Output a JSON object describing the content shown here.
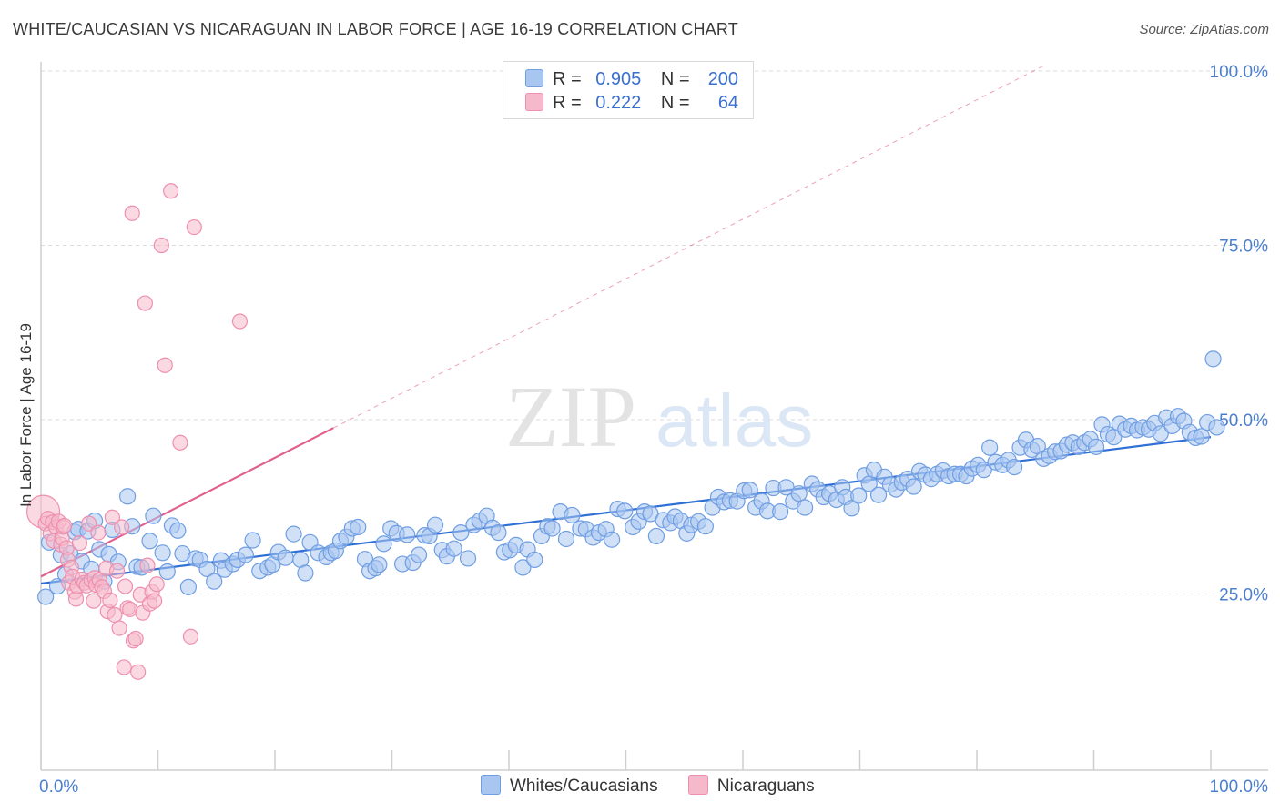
{
  "header": {
    "title": "WHITE/CAUCASIAN VS NICARAGUAN IN LABOR FORCE | AGE 16-19 CORRELATION CHART",
    "source": "Source: ZipAtlas.com"
  },
  "watermark": {
    "zip": "ZIP",
    "atlas": "atlas"
  },
  "colors": {
    "white_fill": "#a9c6f0",
    "white_stroke": "#6f9ee3",
    "white_line": "#2f6fd6",
    "nic_fill": "#f6b9cb",
    "nic_stroke": "#ee8fb0",
    "nic_line": "#e0608e",
    "grid": "#d9d9d9",
    "tick_text": "#4a7fd0"
  },
  "legend_top": {
    "rows": [
      {
        "r_label": "R =",
        "r_value": "0.905",
        "n_label": "N =",
        "n_value": "200"
      },
      {
        "r_label": "R =",
        "r_value": "0.222",
        "n_label": "N =",
        "n_value": "64"
      }
    ]
  },
  "legend_bottom": {
    "items": [
      {
        "label": "Whites/Caucasians"
      },
      {
        "label": "Nicaraguans"
      }
    ]
  },
  "chart_data": {
    "type": "scatter",
    "title": "WHITE/CAUCASIAN VS NICARAGUAN IN LABOR FORCE | AGE 16-19 CORRELATION CHART",
    "xlabel": "",
    "ylabel": "In Labor Force | Age 16-19",
    "xlim": [
      0,
      100
    ],
    "ylim": [
      0,
      100
    ],
    "x_ticks": [
      {
        "value": 0,
        "label": "0.0%"
      },
      {
        "value": 100,
        "label": "100.0%"
      }
    ],
    "y_ticks": [
      {
        "value": 25,
        "label": "25.0%"
      },
      {
        "value": 50,
        "label": "50.0%"
      },
      {
        "value": 75,
        "label": "75.0%"
      },
      {
        "value": 100,
        "label": "100.0%"
      }
    ],
    "grid": true,
    "legend_placement": "bottom-center",
    "series": [
      {
        "name": "Whites/Caucasians",
        "r": 0.905,
        "n": 200,
        "trend": {
          "x": [
            0,
            100
          ],
          "y": [
            26.5,
            47.5
          ]
        },
        "points": [
          [
            0.4,
            24.6
          ],
          [
            0.7,
            32.4
          ],
          [
            1.4,
            26.1
          ],
          [
            1.7,
            30.6
          ],
          [
            2.1,
            27.8
          ],
          [
            2.5,
            30.8
          ],
          [
            2.9,
            33.9
          ],
          [
            3.2,
            34.3
          ],
          [
            3.5,
            29.7
          ],
          [
            4.0,
            34.0
          ],
          [
            4.3,
            28.6
          ],
          [
            4.6,
            35.5
          ],
          [
            5.0,
            31.4
          ],
          [
            5.4,
            26.8
          ],
          [
            5.8,
            30.7
          ],
          [
            6.1,
            34.2
          ],
          [
            6.6,
            29.6
          ],
          [
            7.4,
            39.0
          ],
          [
            7.8,
            34.7
          ],
          [
            8.2,
            28.9
          ],
          [
            8.6,
            28.8
          ],
          [
            9.3,
            32.6
          ],
          [
            9.6,
            36.2
          ],
          [
            10.4,
            30.9
          ],
          [
            10.8,
            28.2
          ],
          [
            11.2,
            34.8
          ],
          [
            11.7,
            34.1
          ],
          [
            12.1,
            30.8
          ],
          [
            12.6,
            26.0
          ],
          [
            13.2,
            30.1
          ],
          [
            13.6,
            29.9
          ],
          [
            14.2,
            28.6
          ],
          [
            14.8,
            26.8
          ],
          [
            15.4,
            29.8
          ],
          [
            15.7,
            28.5
          ],
          [
            16.4,
            29.3
          ],
          [
            16.8,
            29.9
          ],
          [
            17.5,
            30.6
          ],
          [
            18.1,
            32.7
          ],
          [
            18.7,
            28.3
          ],
          [
            19.4,
            28.8
          ],
          [
            19.8,
            29.2
          ],
          [
            20.3,
            31.0
          ],
          [
            20.9,
            30.2
          ],
          [
            21.6,
            33.6
          ],
          [
            22.2,
            29.9
          ],
          [
            22.6,
            28.0
          ],
          [
            23.0,
            32.4
          ],
          [
            23.7,
            30.9
          ],
          [
            24.4,
            30.3
          ],
          [
            24.8,
            30.9
          ],
          [
            25.2,
            31.2
          ],
          [
            25.6,
            32.6
          ],
          [
            26.1,
            33.2
          ],
          [
            26.6,
            34.4
          ],
          [
            27.1,
            34.6
          ],
          [
            27.7,
            30.0
          ],
          [
            28.1,
            28.3
          ],
          [
            28.6,
            28.7
          ],
          [
            28.9,
            29.2
          ],
          [
            29.3,
            32.2
          ],
          [
            29.9,
            34.4
          ],
          [
            30.4,
            33.7
          ],
          [
            30.9,
            29.3
          ],
          [
            31.3,
            33.5
          ],
          [
            31.8,
            29.5
          ],
          [
            32.3,
            30.6
          ],
          [
            32.8,
            33.4
          ],
          [
            33.2,
            33.3
          ],
          [
            33.7,
            34.9
          ],
          [
            34.3,
            31.3
          ],
          [
            34.7,
            30.4
          ],
          [
            35.3,
            31.5
          ],
          [
            35.9,
            33.8
          ],
          [
            36.5,
            30.1
          ],
          [
            37.0,
            34.9
          ],
          [
            37.5,
            35.5
          ],
          [
            38.1,
            36.2
          ],
          [
            38.6,
            34.5
          ],
          [
            39.1,
            33.8
          ],
          [
            39.6,
            31.0
          ],
          [
            40.1,
            31.3
          ],
          [
            40.6,
            32.0
          ],
          [
            41.2,
            28.8
          ],
          [
            41.6,
            31.4
          ],
          [
            42.2,
            29.9
          ],
          [
            42.8,
            33.3
          ],
          [
            43.3,
            34.7
          ],
          [
            43.7,
            34.4
          ],
          [
            44.4,
            36.8
          ],
          [
            44.9,
            32.9
          ],
          [
            45.4,
            36.3
          ],
          [
            46.1,
            34.4
          ],
          [
            46.6,
            34.3
          ],
          [
            47.2,
            33.1
          ],
          [
            47.7,
            33.8
          ],
          [
            48.3,
            34.3
          ],
          [
            48.8,
            32.8
          ],
          [
            49.3,
            37.2
          ],
          [
            49.9,
            36.9
          ],
          [
            50.6,
            34.6
          ],
          [
            51.1,
            35.4
          ],
          [
            51.6,
            36.8
          ],
          [
            52.1,
            36.5
          ],
          [
            52.6,
            33.3
          ],
          [
            53.2,
            35.6
          ],
          [
            53.8,
            35.2
          ],
          [
            54.2,
            36.1
          ],
          [
            54.7,
            35.5
          ],
          [
            55.2,
            33.7
          ],
          [
            55.6,
            34.9
          ],
          [
            56.2,
            35.4
          ],
          [
            56.8,
            34.7
          ],
          [
            57.4,
            37.4
          ],
          [
            57.9,
            38.9
          ],
          [
            58.4,
            38.2
          ],
          [
            58.9,
            38.4
          ],
          [
            59.5,
            38.3
          ],
          [
            60.1,
            39.8
          ],
          [
            60.6,
            39.9
          ],
          [
            61.1,
            37.4
          ],
          [
            61.6,
            38.3
          ],
          [
            62.1,
            36.9
          ],
          [
            62.6,
            40.2
          ],
          [
            63.2,
            36.8
          ],
          [
            63.7,
            40.3
          ],
          [
            64.3,
            38.3
          ],
          [
            64.8,
            39.4
          ],
          [
            65.3,
            37.4
          ],
          [
            65.9,
            40.8
          ],
          [
            66.4,
            40.0
          ],
          [
            66.9,
            38.9
          ],
          [
            67.4,
            39.4
          ],
          [
            68.0,
            38.5
          ],
          [
            68.5,
            40.3
          ],
          [
            68.8,
            38.9
          ],
          [
            69.3,
            37.3
          ],
          [
            69.9,
            39.1
          ],
          [
            70.4,
            42.0
          ],
          [
            70.8,
            40.8
          ],
          [
            71.2,
            42.8
          ],
          [
            71.6,
            39.2
          ],
          [
            72.1,
            41.8
          ],
          [
            72.6,
            40.7
          ],
          [
            73.1,
            40.0
          ],
          [
            73.6,
            41.0
          ],
          [
            74.1,
            41.5
          ],
          [
            74.6,
            40.4
          ],
          [
            75.1,
            42.6
          ],
          [
            75.6,
            42.1
          ],
          [
            76.1,
            41.5
          ],
          [
            76.6,
            42.2
          ],
          [
            77.1,
            42.7
          ],
          [
            77.6,
            41.9
          ],
          [
            78.1,
            42.2
          ],
          [
            78.6,
            42.2
          ],
          [
            79.1,
            41.9
          ],
          [
            79.6,
            43.0
          ],
          [
            80.1,
            43.5
          ],
          [
            80.6,
            42.8
          ],
          [
            81.1,
            46.0
          ],
          [
            81.6,
            43.9
          ],
          [
            82.2,
            43.5
          ],
          [
            82.7,
            44.2
          ],
          [
            83.2,
            43.2
          ],
          [
            83.7,
            46.0
          ],
          [
            84.2,
            47.1
          ],
          [
            84.7,
            45.7
          ],
          [
            85.2,
            46.2
          ],
          [
            85.7,
            44.4
          ],
          [
            86.2,
            44.8
          ],
          [
            86.7,
            45.4
          ],
          [
            87.2,
            45.5
          ],
          [
            87.7,
            46.4
          ],
          [
            88.2,
            46.7
          ],
          [
            88.7,
            46.1
          ],
          [
            89.2,
            46.7
          ],
          [
            89.7,
            47.2
          ],
          [
            90.2,
            46.1
          ],
          [
            90.7,
            49.3
          ],
          [
            91.2,
            47.9
          ],
          [
            91.7,
            47.5
          ],
          [
            92.2,
            49.4
          ],
          [
            92.7,
            48.6
          ],
          [
            93.2,
            49.1
          ],
          [
            93.7,
            48.5
          ],
          [
            94.2,
            48.9
          ],
          [
            94.7,
            48.6
          ],
          [
            95.2,
            49.5
          ],
          [
            95.7,
            48.0
          ],
          [
            96.2,
            50.3
          ],
          [
            96.7,
            49.1
          ],
          [
            97.2,
            50.5
          ],
          [
            97.7,
            49.8
          ],
          [
            98.2,
            48.2
          ],
          [
            98.7,
            47.4
          ],
          [
            99.2,
            47.6
          ],
          [
            99.7,
            49.6
          ],
          [
            100.2,
            58.7
          ],
          [
            100.5,
            48.9
          ]
        ]
      },
      {
        "name": "Nicaraguans",
        "r": 0.222,
        "n": 64,
        "trend": {
          "x": [
            0,
            25
          ],
          "y": [
            27.5,
            48.8
          ]
        },
        "trend_dashed": {
          "x": [
            25,
            86
          ],
          "y": [
            48.8,
            101
          ]
        },
        "points": [
          [
            0.2,
            36.8
          ],
          [
            0.4,
            35.1
          ],
          [
            0.6,
            35.8
          ],
          [
            0.8,
            33.7
          ],
          [
            1.0,
            35.3
          ],
          [
            1.1,
            32.6
          ],
          [
            1.3,
            34.6
          ],
          [
            1.5,
            35.4
          ],
          [
            1.7,
            32.1
          ],
          [
            1.8,
            33.0
          ],
          [
            1.9,
            34.6
          ],
          [
            2.0,
            34.8
          ],
          [
            2.2,
            31.6
          ],
          [
            2.3,
            29.9
          ],
          [
            2.4,
            26.6
          ],
          [
            2.6,
            28.8
          ],
          [
            2.7,
            27.5
          ],
          [
            2.9,
            25.3
          ],
          [
            3.0,
            24.3
          ],
          [
            3.1,
            26.1
          ],
          [
            3.3,
            32.3
          ],
          [
            3.5,
            27.1
          ],
          [
            3.7,
            26.6
          ],
          [
            3.9,
            26.2
          ],
          [
            4.1,
            35.1
          ],
          [
            4.3,
            27.0
          ],
          [
            4.5,
            24.0
          ],
          [
            4.6,
            27.3
          ],
          [
            4.7,
            26.3
          ],
          [
            4.9,
            33.8
          ],
          [
            5.0,
            27.0
          ],
          [
            5.2,
            26.0
          ],
          [
            5.4,
            25.4
          ],
          [
            5.6,
            28.7
          ],
          [
            5.7,
            22.5
          ],
          [
            5.9,
            24.1
          ],
          [
            6.1,
            36.0
          ],
          [
            6.3,
            22.0
          ],
          [
            6.5,
            28.3
          ],
          [
            6.7,
            20.1
          ],
          [
            6.9,
            34.6
          ],
          [
            7.1,
            14.5
          ],
          [
            7.2,
            26.1
          ],
          [
            7.4,
            23.0
          ],
          [
            7.6,
            22.8
          ],
          [
            7.8,
            79.6
          ],
          [
            7.9,
            18.3
          ],
          [
            8.1,
            18.6
          ],
          [
            8.3,
            13.8
          ],
          [
            8.5,
            24.9
          ],
          [
            8.7,
            22.3
          ],
          [
            8.9,
            66.7
          ],
          [
            9.1,
            29.1
          ],
          [
            9.3,
            23.6
          ],
          [
            9.5,
            25.3
          ],
          [
            9.7,
            24.0
          ],
          [
            9.9,
            26.4
          ],
          [
            10.3,
            75.0
          ],
          [
            10.6,
            57.8
          ],
          [
            11.1,
            82.8
          ],
          [
            11.9,
            46.7
          ],
          [
            12.8,
            18.9
          ],
          [
            13.1,
            77.6
          ],
          [
            17.0,
            64.1
          ]
        ]
      }
    ]
  }
}
